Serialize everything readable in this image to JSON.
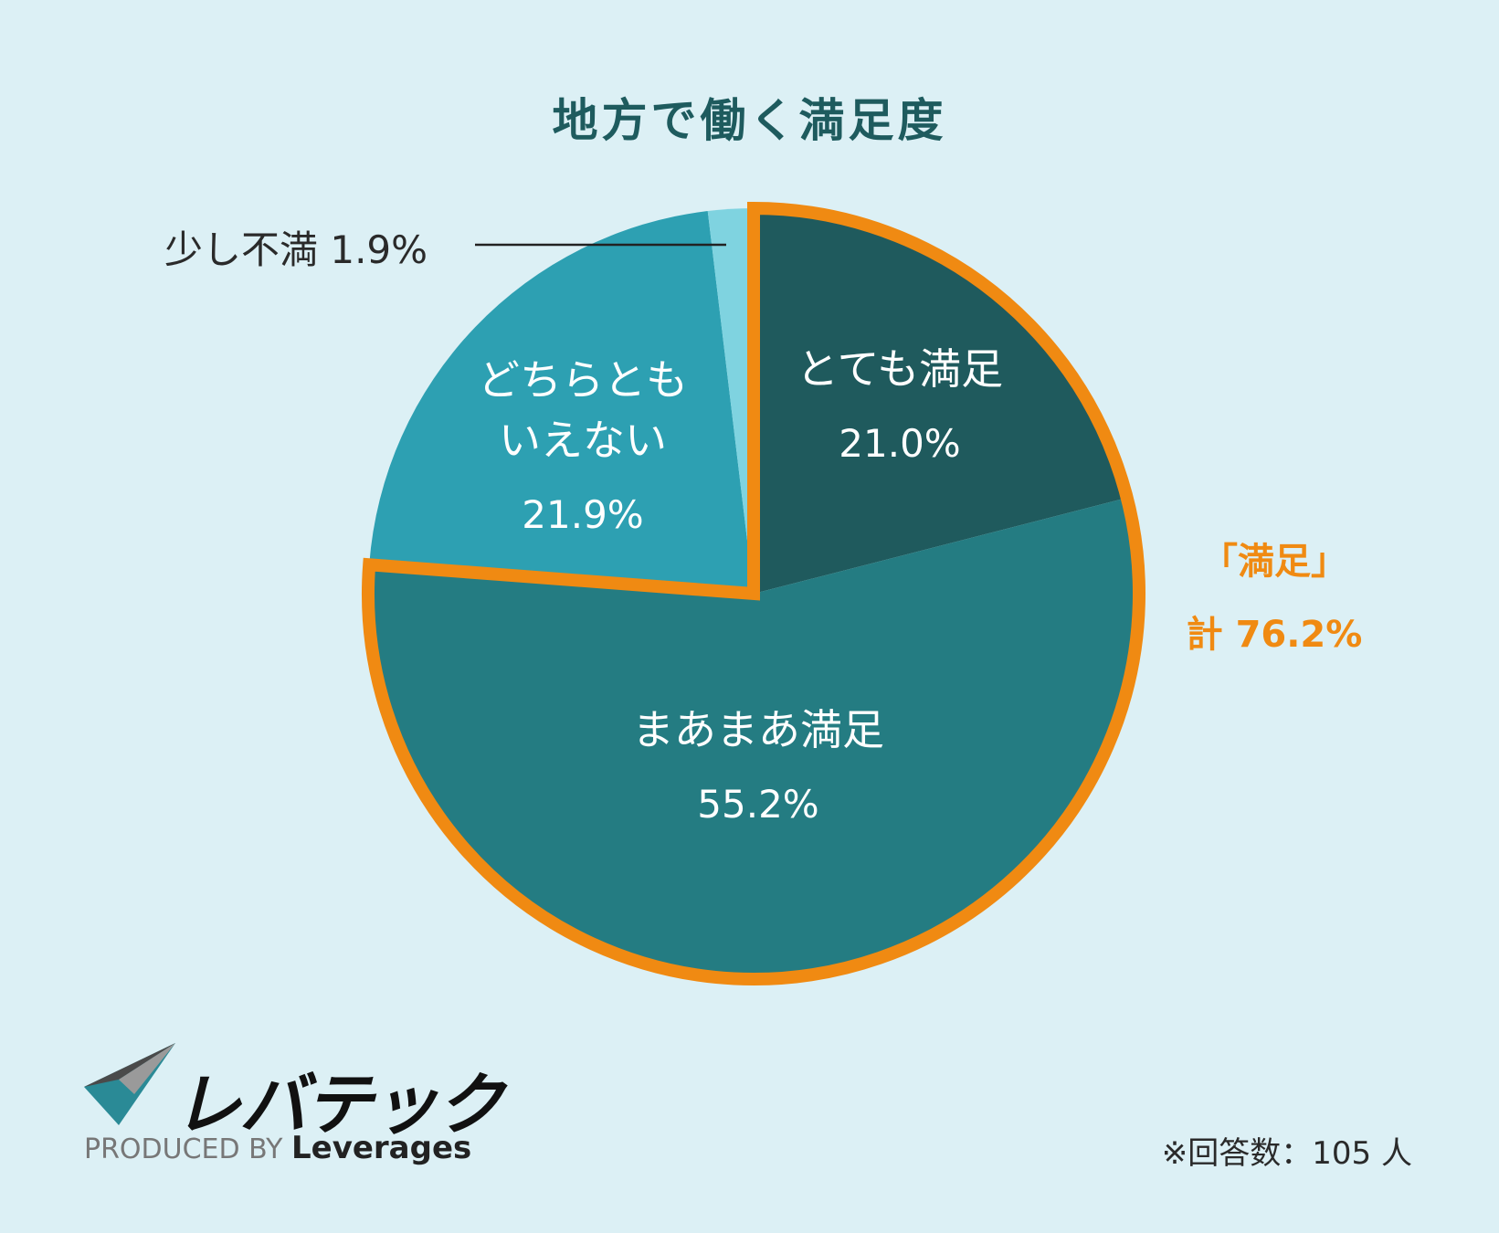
{
  "title": "地方で働く満足度",
  "chart_data": {
    "type": "pie",
    "title": "地方で働く満足度",
    "start": "12 o'clock, clockwise",
    "slices": [
      {
        "label": "とても満足",
        "value": 21.0,
        "display": "21.0%",
        "color": "#1f5a5d"
      },
      {
        "label": "まあまあ満足",
        "value": 55.2,
        "display": "55.2%",
        "color": "#247c82"
      },
      {
        "label": "どちらともいえない",
        "value": 21.9,
        "display": "21.9%",
        "color": "#2da0b2"
      },
      {
        "label": "少し不満",
        "value": 1.9,
        "display": "1.9%",
        "color": "#7fd3e0"
      }
    ],
    "highlight": {
      "label": "「満足」",
      "total_label": "計 76.2%",
      "slices": [
        "とても満足",
        "まあまあ満足"
      ],
      "color": "#f08a12"
    }
  },
  "labels": {
    "slice1_line1": "とても満足",
    "slice1_value": "21.0%",
    "slice2_line1": "まあまあ満足",
    "slice2_value": "55.2%",
    "slice3_line1": "どちらとも",
    "slice3_line2": "いえない",
    "slice3_value": "21.9%",
    "slice4_callout": "少し不満 1.9%"
  },
  "highlight_label": "「満足」",
  "highlight_total": "計 76.2%",
  "footnote": "※回答数：105 人",
  "logo": {
    "brand": "レバテック",
    "produced_by": "PRODUCED BY",
    "company": "Leverages"
  },
  "colors": {
    "background": "#dcf0f5",
    "title": "#1e5b5e",
    "accent": "#f08a12"
  }
}
